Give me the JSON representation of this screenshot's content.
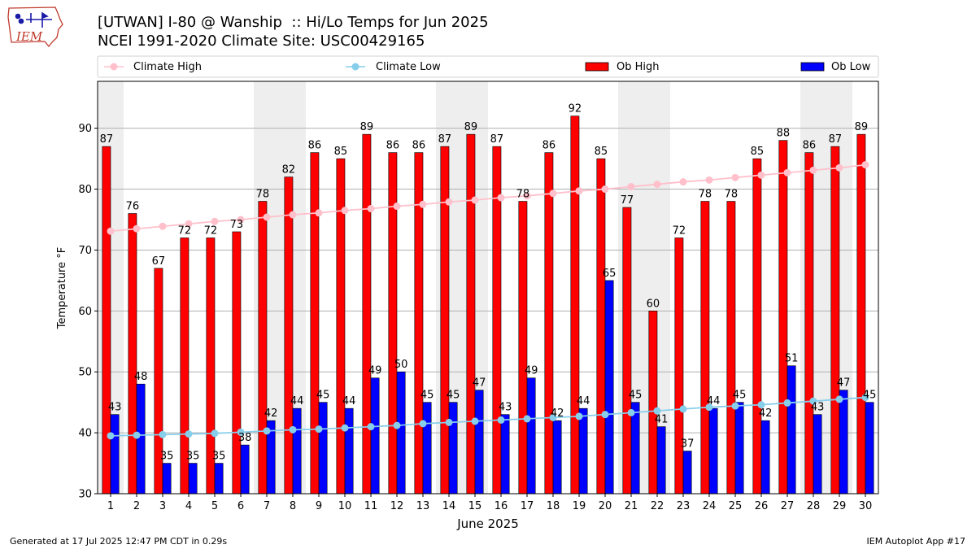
{
  "logo": {
    "text": "IEM",
    "colors": {
      "state": "#c0392b",
      "text": "#c0392b",
      "icon": "#1a1aa8"
    }
  },
  "header": {
    "title_line1": "[UTWAN] I-80 @ Wanship  :: Hi/Lo Temps for Jun 2025",
    "title_line2": "NCEI 1991-2020 Climate Site: USC00429165"
  },
  "footer": {
    "left": "Generated at 17 Jul 2025 12:47 PM CDT in 0.29s",
    "right": "IEM Autoplot App #17"
  },
  "chart_data": {
    "type": "bar",
    "title": "[UTWAN] I-80 @ Wanship  :: Hi/Lo Temps for Jun 2025",
    "subtitle": "NCEI 1991-2020 Climate Site: USC00429165",
    "xlabel": "June 2025",
    "ylabel": "Temperature °F",
    "ylim": [
      30,
      97.7
    ],
    "yticks": [
      30,
      40,
      50,
      60,
      70,
      80,
      90
    ],
    "grid": true,
    "legend_placement": "top, horizontal row",
    "categories": [
      "1",
      "2",
      "3",
      "4",
      "5",
      "6",
      "7",
      "8",
      "9",
      "10",
      "11",
      "12",
      "13",
      "14",
      "15",
      "16",
      "17",
      "18",
      "19",
      "20",
      "21",
      "22",
      "23",
      "24",
      "25",
      "26",
      "27",
      "28",
      "29",
      "30"
    ],
    "weekend_shaded_days": [
      1,
      7,
      8,
      14,
      15,
      21,
      22,
      28,
      29
    ],
    "series": [
      {
        "name": "Ob High",
        "kind": "bar",
        "color": "#ff0000",
        "values": [
          87,
          76,
          67,
          72,
          72,
          73,
          78,
          82,
          86,
          85,
          89,
          86,
          86,
          87,
          89,
          87,
          78,
          86,
          92,
          85,
          77,
          60,
          72,
          78,
          78,
          85,
          88,
          86,
          87,
          89
        ]
      },
      {
        "name": "Ob Low",
        "kind": "bar",
        "color": "#0000ff",
        "values": [
          43,
          48,
          35,
          35,
          35,
          38,
          42,
          44,
          45,
          44,
          49,
          50,
          45,
          45,
          47,
          43,
          49,
          42,
          44,
          65,
          45,
          41,
          37,
          44,
          45,
          42,
          51,
          43,
          47,
          45
        ]
      },
      {
        "name": "Climate High",
        "kind": "line",
        "color": "#ffc0cb",
        "values": [
          73.1,
          73.5,
          73.9,
          74.3,
          74.7,
          75.0,
          75.4,
          75.8,
          76.1,
          76.5,
          76.8,
          77.2,
          77.5,
          77.9,
          78.2,
          78.6,
          78.9,
          79.3,
          79.7,
          80.0,
          80.4,
          80.8,
          81.2,
          81.5,
          81.9,
          82.3,
          82.7,
          83.1,
          83.5,
          84.0
        ]
      },
      {
        "name": "Climate Low",
        "kind": "line",
        "color": "#87ceeb",
        "values": [
          39.5,
          39.6,
          39.7,
          39.8,
          39.9,
          40.1,
          40.3,
          40.5,
          40.6,
          40.8,
          41.0,
          41.2,
          41.5,
          41.7,
          41.9,
          42.1,
          42.3,
          42.5,
          42.7,
          43.0,
          43.3,
          43.6,
          43.9,
          44.2,
          44.4,
          44.6,
          44.9,
          45.2,
          45.5,
          45.8
        ]
      }
    ]
  }
}
